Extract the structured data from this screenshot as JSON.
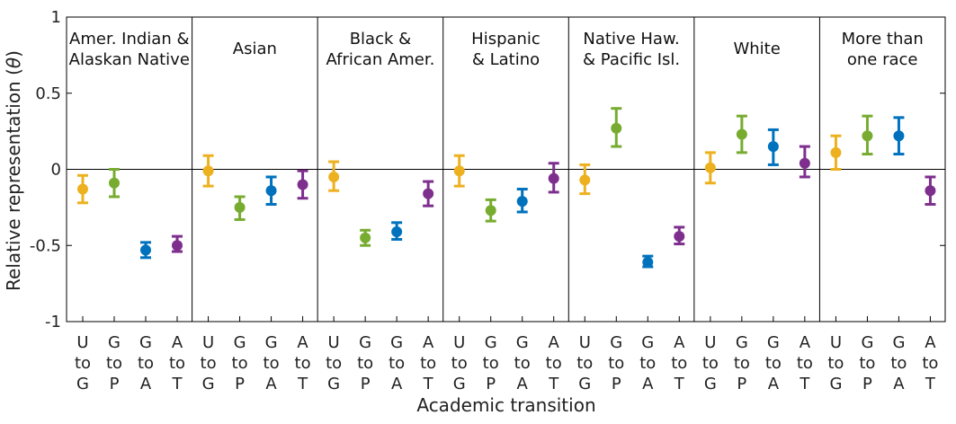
{
  "chart_data": {
    "type": "errorbar",
    "ylabel_prefix": "Relative representation (",
    "ylabel_symbol": "θ",
    "ylabel_suffix": ")",
    "xlabel": "Academic transition",
    "ylim": [
      -1,
      1
    ],
    "yticks": [
      "1",
      "0.5",
      "0",
      "-0.5",
      "-1"
    ],
    "ytick_values": [
      1,
      0.5,
      0,
      -0.5,
      -1
    ],
    "reference_line": 0,
    "transitions": [
      {
        "lines": [
          "U",
          "to",
          "G"
        ],
        "color": "#EDB120"
      },
      {
        "lines": [
          "G",
          "to",
          "P"
        ],
        "color": "#77AC30"
      },
      {
        "lines": [
          "G",
          "to",
          "A"
        ],
        "color": "#0072BD"
      },
      {
        "lines": [
          "A",
          "to",
          "T"
        ],
        "color": "#7E2F8E"
      }
    ],
    "groups": [
      {
        "label_lines": [
          "Amer. Indian &",
          "Alaskan Native"
        ],
        "values": [
          -0.13,
          -0.09,
          -0.53,
          -0.5
        ],
        "lower": [
          -0.22,
          -0.18,
          -0.58,
          -0.54
        ],
        "upper": [
          -0.04,
          0.0,
          -0.48,
          -0.44
        ]
      },
      {
        "label_lines": [
          "Asian"
        ],
        "values": [
          -0.01,
          -0.25,
          -0.14,
          -0.1
        ],
        "lower": [
          -0.11,
          -0.33,
          -0.23,
          -0.19
        ],
        "upper": [
          0.09,
          -0.18,
          -0.05,
          -0.01
        ]
      },
      {
        "label_lines": [
          "Black &",
          "African Amer."
        ],
        "values": [
          -0.05,
          -0.45,
          -0.41,
          -0.16
        ],
        "lower": [
          -0.14,
          -0.5,
          -0.46,
          -0.24
        ],
        "upper": [
          0.05,
          -0.4,
          -0.35,
          -0.08
        ]
      },
      {
        "label_lines": [
          "Hispanic",
          "& Latino"
        ],
        "values": [
          -0.01,
          -0.27,
          -0.21,
          -0.06
        ],
        "lower": [
          -0.11,
          -0.34,
          -0.28,
          -0.15
        ],
        "upper": [
          0.09,
          -0.2,
          -0.13,
          0.04
        ]
      },
      {
        "label_lines": [
          "Native Haw.",
          "& Pacific Isl."
        ],
        "values": [
          -0.07,
          0.27,
          -0.61,
          -0.44
        ],
        "lower": [
          -0.16,
          0.15,
          -0.64,
          -0.49
        ],
        "upper": [
          0.03,
          0.4,
          -0.57,
          -0.38
        ]
      },
      {
        "label_lines": [
          "White"
        ],
        "values": [
          0.01,
          0.23,
          0.15,
          0.04
        ],
        "lower": [
          -0.09,
          0.11,
          0.03,
          -0.05
        ],
        "upper": [
          0.11,
          0.35,
          0.26,
          0.15
        ]
      },
      {
        "label_lines": [
          "More than",
          "one race"
        ],
        "values": [
          0.11,
          0.22,
          0.22,
          -0.14
        ],
        "lower": [
          0.0,
          0.1,
          0.1,
          -0.23
        ],
        "upper": [
          0.22,
          0.35,
          0.34,
          -0.05
        ]
      }
    ]
  }
}
